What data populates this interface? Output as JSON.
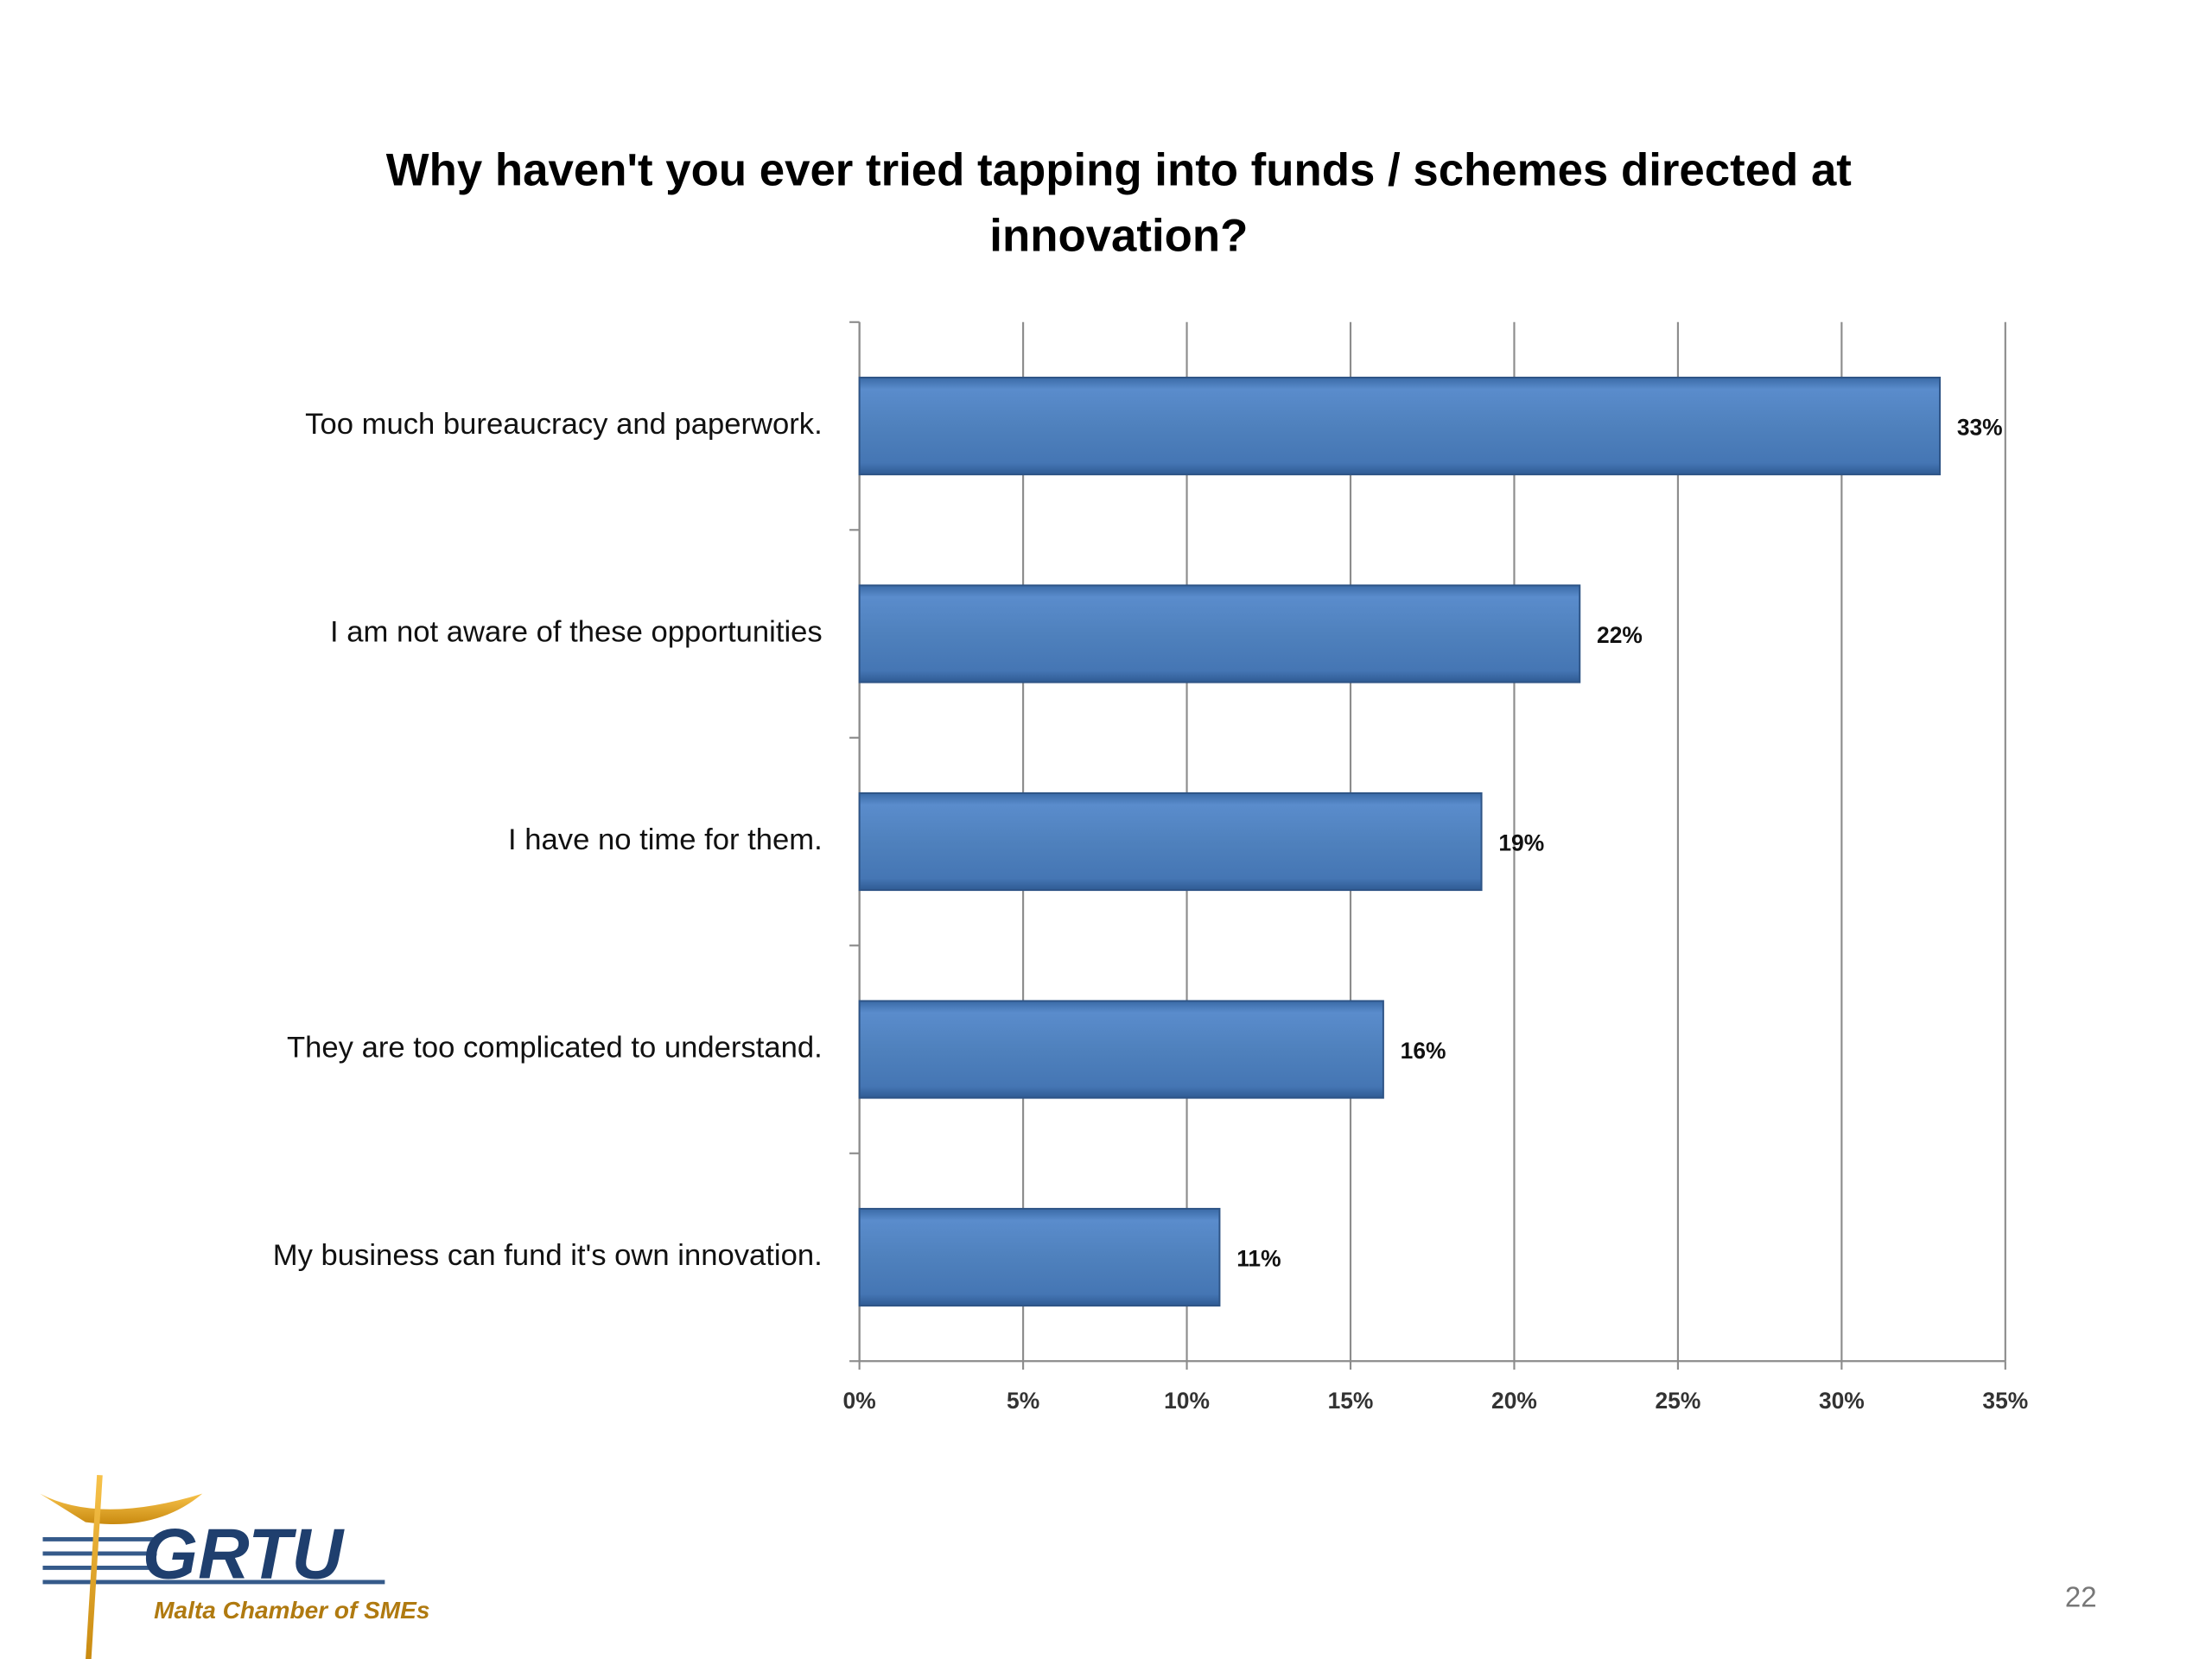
{
  "chart_data": {
    "type": "hbar",
    "title": "Why haven't you ever tried tapping into funds / schemes directed at innovation?",
    "categories": [
      "Too much bureaucracy and paperwork.",
      "I am not aware of these opportunities",
      "I have no time for them.",
      "They are too complicated to understand.",
      "My business can fund it's own innovation."
    ],
    "values": [
      33,
      22,
      19,
      16,
      11
    ],
    "value_labels": [
      "33%",
      "22%",
      "19%",
      "16%",
      "11%"
    ],
    "color": "#4f81bd",
    "xlim": [
      0,
      35
    ],
    "xticks": [
      {
        "value": 0,
        "label": "0%"
      },
      {
        "value": 5,
        "label": "5%"
      },
      {
        "value": 10,
        "label": "10%"
      },
      {
        "value": 15,
        "label": "15%"
      },
      {
        "value": 20,
        "label": "20%"
      },
      {
        "value": 25,
        "label": "25%"
      },
      {
        "value": 30,
        "label": "30%"
      },
      {
        "value": 35,
        "label": "35%"
      }
    ],
    "grid": true
  },
  "logo": {
    "name": "GRTU",
    "tagline": "Malta Chamber of SMEs"
  },
  "page_number": "22"
}
